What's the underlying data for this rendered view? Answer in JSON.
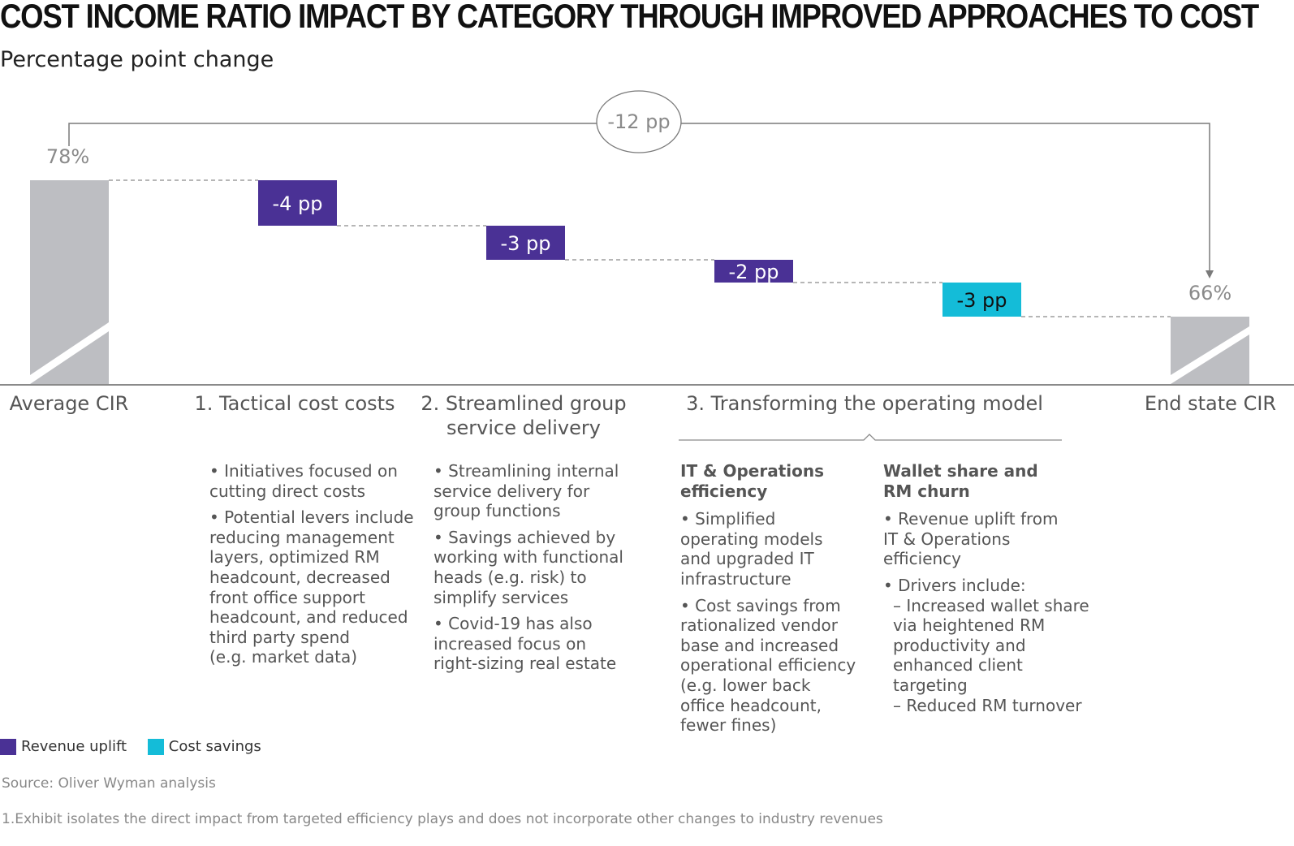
{
  "title": "COST INCOME RATIO IMPACT BY CATEGORY THROUGH IMPROVED APPROACHES TO COST",
  "subtitle": "Percentage point change",
  "colors": {
    "revenue": "#4a3195",
    "cost": "#14bcd8",
    "bar": "#bdbec2",
    "text": "#555555"
  },
  "chart_data": {
    "type": "bar",
    "subtype": "waterfall",
    "title": "COST INCOME RATIO IMPACT BY CATEGORY THROUGH IMPROVED APPROACHES TO COST",
    "ylabel": "Percentage point change",
    "ylim": [
      0,
      80
    ],
    "axis_break": true,
    "categories": [
      "Average CIR",
      "1. Tactical cost costs",
      "2. Streamlined group service delivery",
      "3. Transforming the operating model",
      "3. Transforming the operating model",
      "End state CIR"
    ],
    "start": {
      "label": "Average CIR",
      "value": 78,
      "value_label": "78%"
    },
    "end": {
      "label": "End state CIR",
      "value": 66,
      "value_label": "66%"
    },
    "steps": [
      {
        "value": -4,
        "label": "-4 pp",
        "type": "Revenue uplift"
      },
      {
        "value": -3,
        "label": "-3 pp",
        "type": "Revenue uplift"
      },
      {
        "value": -2,
        "label": "-2 pp",
        "type": "Revenue uplift"
      },
      {
        "value": -3,
        "label": "-3 pp",
        "type": "Cost savings"
      }
    ],
    "total_change_label": "-12 pp",
    "legend": [
      "Revenue uplift",
      "Cost savings"
    ]
  },
  "cat_labels": {
    "avg": "Average CIR",
    "tactical": "1. Tactical cost costs",
    "streamlined_1": "2. Streamlined group",
    "streamlined_2": "service delivery",
    "transforming": "3. Transforming the operating model",
    "end": "End state CIR"
  },
  "col1": {
    "b1_l1": "• Initiatives focused on",
    "b1_l2": "cutting direct costs",
    "b2_l1": "• Potential levers include",
    "b2_l2": "reducing management",
    "b2_l3": "layers, optimized RM",
    "b2_l4": "headcount, decreased",
    "b2_l5": "front office support",
    "b2_l6": "headcount, and reduced",
    "b2_l7": "third party spend",
    "b2_l8": "(e.g.  market data)"
  },
  "col2": {
    "b1_l1": "• Streamlining internal",
    "b1_l2": "service delivery for",
    "b1_l3": "group functions",
    "b2_l1": "• Savings achieved by",
    "b2_l2": "working with functional",
    "b2_l3": "heads (e.g. risk) to",
    "b2_l4": "simplify services",
    "b3_l1": "• Covid-19 has also",
    "b3_l2": "increased focus on",
    "b3_l3": "right-sizing real estate"
  },
  "col3": {
    "h1": "IT & Operations",
    "h2": "efficiency",
    "b1_l1": "• Simplified",
    "b1_l2": "operating models",
    "b1_l3": "and upgraded IT",
    "b1_l4": "infrastructure",
    "b2_l1": "• Cost savings from",
    "b2_l2": "rationalized vendor",
    "b2_l3": "base and increased",
    "b2_l4": "operational efficiency",
    "b2_l5": "(e.g. lower back",
    "b2_l6": "office headcount,",
    "b2_l7": "fewer fines)"
  },
  "col4": {
    "h1": "Wallet share and",
    "h2": "RM churn",
    "b1_l1": "• Revenue uplift from",
    "b1_l2": "IT & Operations",
    "b1_l3": "efficiency",
    "b2_l1": "• Drivers include:",
    "s1_l1": "– Increased wallet share",
    "s1_l2": "via heightened RM",
    "s1_l3": "productivity and",
    "s1_l4": "enhanced client",
    "s1_l5": "targeting",
    "s2_l1": "– Reduced RM turnover"
  },
  "legend": {
    "revenue": "Revenue uplift",
    "cost": "Cost savings"
  },
  "source": "Source: Oliver Wyman analysis",
  "footnote": "1.Exhibit isolates the direct impact from targeted efficiency plays and does not incorporate other changes to industry revenues"
}
